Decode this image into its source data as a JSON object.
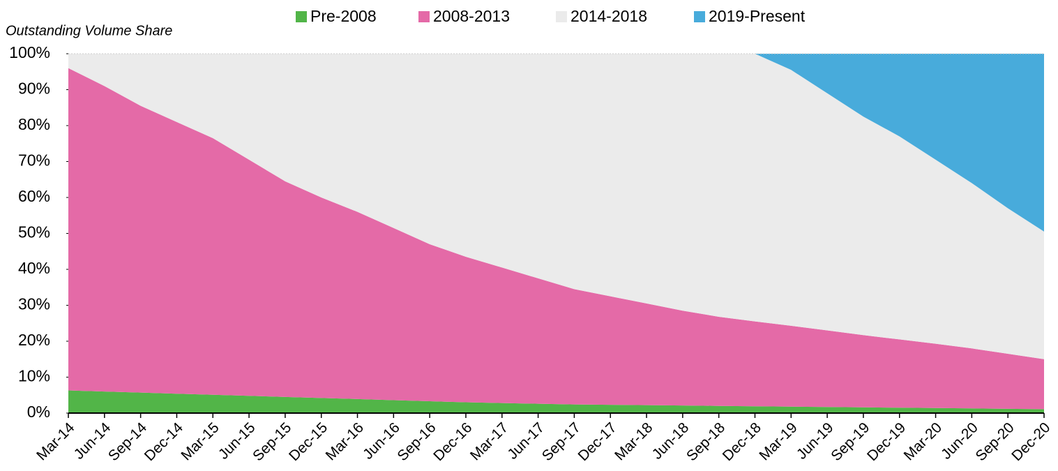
{
  "chart_data": {
    "type": "stacked_area",
    "y_label": "Outstanding Volume Share",
    "categories": [
      "Mar-14",
      "Jun-14",
      "Sep-14",
      "Dec-14",
      "Mar-15",
      "Jun-15",
      "Sep-15",
      "Dec-15",
      "Mar-16",
      "Jun-16",
      "Sep-16",
      "Dec-16",
      "Mar-17",
      "Jun-17",
      "Sep-17",
      "Dec-17",
      "Mar-18",
      "Jun-18",
      "Sep-18",
      "Dec-18",
      "Mar-19",
      "Jun-19",
      "Sep-19",
      "Dec-19",
      "Mar-20",
      "Jun-20",
      "Sep-20",
      "Dec-20"
    ],
    "series": [
      {
        "name": "Pre-2008",
        "color": "#52b548",
        "values": [
          6.3,
          6.0,
          5.7,
          5.4,
          5.1,
          4.8,
          4.5,
          4.2,
          3.9,
          3.6,
          3.3,
          3.0,
          2.8,
          2.6,
          2.4,
          2.3,
          2.2,
          2.1,
          2.0,
          1.9,
          1.8,
          1.7,
          1.6,
          1.5,
          1.4,
          1.3,
          1.2,
          1.1
        ]
      },
      {
        "name": "2008-2013",
        "color": "#e46aa7",
        "values": [
          89.7,
          85,
          79.8,
          75.6,
          71.4,
          65.7,
          60,
          55.8,
          52.1,
          47.9,
          43.7,
          40.5,
          37.7,
          34.9,
          32.1,
          30.2,
          28.3,
          26.4,
          24.8,
          23.6,
          22.5,
          21.3,
          20.1,
          19,
          17.9,
          16.7,
          15.3,
          13.9
        ]
      },
      {
        "name": "2014-2018",
        "color": "#ebebeb",
        "values": [
          4,
          9,
          14.5,
          19,
          23.5,
          29.5,
          35.5,
          40,
          44,
          48.5,
          53,
          56.5,
          59.5,
          62.5,
          65.5,
          67.5,
          69.5,
          71.5,
          73.2,
          74.5,
          71.2,
          66,
          60.8,
          56.5,
          51.2,
          46,
          40.5,
          35.5
        ]
      },
      {
        "name": "2019-Present",
        "color": "#48abdb",
        "values": [
          0,
          0,
          0,
          0,
          0,
          0,
          0,
          0,
          0,
          0,
          0,
          0,
          0,
          0,
          0,
          0,
          0,
          0,
          0,
          0,
          4.5,
          11,
          17.5,
          23,
          29.5,
          36,
          43,
          49.5
        ]
      }
    ],
    "ylim": [
      0,
      100
    ],
    "yticks": [
      {
        "value": 0,
        "label": "0%"
      },
      {
        "value": 10,
        "label": "10%"
      },
      {
        "value": 20,
        "label": "20%"
      },
      {
        "value": 30,
        "label": "30%"
      },
      {
        "value": 40,
        "label": "40%"
      },
      {
        "value": 50,
        "label": "50%"
      },
      {
        "value": 60,
        "label": "60%"
      },
      {
        "value": 70,
        "label": "70%"
      },
      {
        "value": 80,
        "label": "80%"
      },
      {
        "value": 90,
        "label": "90%"
      },
      {
        "value": 100,
        "label": "100%"
      }
    ],
    "legend": "top"
  }
}
